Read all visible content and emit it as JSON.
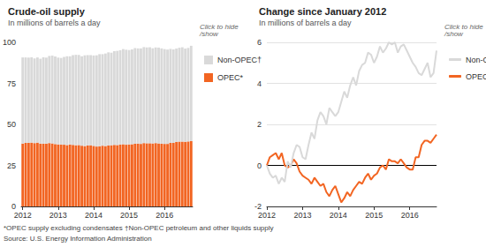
{
  "chart_data": [
    {
      "type": "bar",
      "title": "Crude-oil supply",
      "subtitle": "In millions of barrels a day",
      "legend_title": "Click to hide/show",
      "legend": "right",
      "stacked": true,
      "grid": false,
      "categories": [
        "2012",
        null,
        null,
        null,
        null,
        null,
        null,
        null,
        null,
        null,
        null,
        null,
        "2013",
        null,
        null,
        null,
        null,
        null,
        null,
        null,
        null,
        null,
        null,
        null,
        "2014",
        null,
        null,
        null,
        null,
        null,
        null,
        null,
        null,
        null,
        null,
        null,
        "2015",
        null,
        null,
        null,
        null,
        null,
        null,
        null,
        null,
        null,
        null,
        null,
        "2016",
        null,
        null,
        null,
        null,
        null,
        null,
        null,
        null,
        null
      ],
      "series": [
        {
          "name": "OPEC*",
          "color": "#f26522",
          "values": [
            38.3,
            38.7,
            38.8,
            38.9,
            38.6,
            38.9,
            38.3,
            38.2,
            38.3,
            38.6,
            38.4,
            38.0,
            37.8,
            37.7,
            37.6,
            37.4,
            37.7,
            37.5,
            37.3,
            37.4,
            37.0,
            36.8,
            37.1,
            37.3,
            36.9,
            36.5,
            36.7,
            37.0,
            36.8,
            37.1,
            37.3,
            37.5,
            37.4,
            37.7,
            37.9,
            37.6,
            37.8,
            37.9,
            38.2,
            38.3,
            38.1,
            38.6,
            38.5,
            38.5,
            38.4,
            38.6,
            38.4,
            38.2,
            38.1,
            38.1,
            38.7,
            38.7,
            39.3,
            39.5,
            39.5,
            39.4,
            39.6,
            39.8
          ]
        },
        {
          "name": "Non-OPEC†",
          "color": "#d9d9d9",
          "values": [
            52.5,
            52.1,
            51.9,
            52.0,
            51.6,
            51.9,
            51.7,
            52.7,
            52.4,
            53.1,
            53.5,
            53.4,
            52.9,
            52.8,
            53.5,
            54.1,
            53.8,
            54.7,
            55.1,
            54.9,
            54.5,
            55.3,
            55.1,
            54.9,
            55.1,
            55.6,
            56.1,
            55.8,
            56.4,
            56.8,
            56.4,
            57.1,
            57.4,
            57.5,
            58.0,
            57.9,
            57.5,
            57.8,
            58.3,
            58.0,
            58.2,
            58.5,
            58.4,
            58.5,
            58.0,
            58.3,
            58.4,
            58.1,
            57.8,
            57.5,
            57.3,
            57.0,
            56.9,
            57.2,
            57.5,
            56.8,
            57.0,
            58.1
          ]
        }
      ],
      "ylim": [
        0,
        100
      ],
      "yticks": [
        0,
        25,
        50,
        75,
        100
      ]
    },
    {
      "type": "line",
      "title": "Change since January 2012",
      "subtitle": "In millions of barrels a day",
      "legend_title": "Click to hide/show",
      "legend": "right",
      "grid": true,
      "categories": [
        "2012",
        null,
        null,
        null,
        null,
        null,
        null,
        null,
        null,
        null,
        null,
        null,
        "2013",
        null,
        null,
        null,
        null,
        null,
        null,
        null,
        null,
        null,
        null,
        null,
        "2014",
        null,
        null,
        null,
        null,
        null,
        null,
        null,
        null,
        null,
        null,
        null,
        "2015",
        null,
        null,
        null,
        null,
        null,
        null,
        null,
        null,
        null,
        null,
        null,
        "2016",
        null,
        null,
        null,
        null,
        null,
        null,
        null,
        null,
        null
      ],
      "series": [
        {
          "name": "OPEC*",
          "color": "#f26522",
          "values": [
            0,
            0.4,
            0.5,
            0.6,
            0.3,
            0.6,
            0.0,
            -0.1,
            0.0,
            0.3,
            0.1,
            -0.3,
            -0.5,
            -0.6,
            -0.7,
            -0.9,
            -0.6,
            -0.8,
            -1.0,
            -0.9,
            -1.3,
            -1.5,
            -1.2,
            -1.0,
            -1.4,
            -1.8,
            -1.6,
            -1.3,
            -1.5,
            -1.2,
            -1.0,
            -0.8,
            -0.9,
            -0.6,
            -0.4,
            -0.7,
            -0.5,
            -0.4,
            -0.1,
            0.0,
            -0.2,
            0.3,
            0.2,
            0.2,
            0.1,
            0.3,
            0.1,
            -0.1,
            -0.2,
            -0.2,
            0.4,
            0.4,
            1.0,
            1.2,
            1.2,
            1.1,
            1.3,
            1.5
          ]
        },
        {
          "name": "Non-OPEC†",
          "color": "#d9d9d9",
          "values": [
            0,
            -0.4,
            -0.6,
            -0.5,
            -0.9,
            -0.6,
            -0.8,
            0.2,
            -0.1,
            0.6,
            1.0,
            0.9,
            0.4,
            0.3,
            1.0,
            1.6,
            1.3,
            2.2,
            2.6,
            2.4,
            2.0,
            2.8,
            2.6,
            2.4,
            2.6,
            3.1,
            3.6,
            3.3,
            3.9,
            4.3,
            3.9,
            4.6,
            4.9,
            5.0,
            5.5,
            5.4,
            5.0,
            5.3,
            5.8,
            5.5,
            5.7,
            6.0,
            5.9,
            6.0,
            5.5,
            5.8,
            5.9,
            5.6,
            5.3,
            5.0,
            4.8,
            4.5,
            4.4,
            4.7,
            5.0,
            4.3,
            4.5,
            5.6
          ]
        }
      ],
      "ylim": [
        -2,
        6
      ],
      "yticks": [
        -2,
        0,
        2,
        4,
        6
      ]
    }
  ],
  "footnote": "*OPEC supply excluding condensates †Non-OPEC petroleum and other liquids supply",
  "source": "Source: U.S. Energy Information Administration"
}
